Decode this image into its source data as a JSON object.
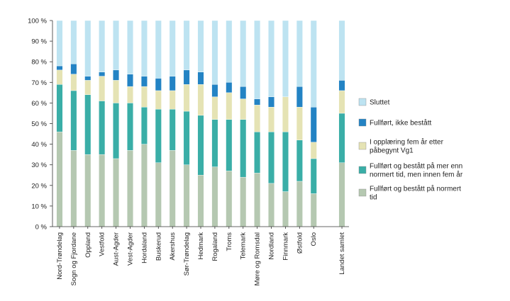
{
  "chart_data": {
    "type": "bar",
    "stacked": true,
    "title": "",
    "xlabel": "",
    "ylabel": "",
    "ylim": [
      0,
      100
    ],
    "yticks": [
      "0 %",
      "10 %",
      "20 %",
      "30 %",
      "40 %",
      "50 %",
      "60 %",
      "70 %",
      "80 %",
      "90 %",
      "100 %"
    ],
    "categories": [
      "Nord-Trøndelag",
      "Sogn og Fjordane",
      "Oppland",
      "Vestfold",
      "Aust-Agder",
      "Vest-Agder",
      "Hordaland",
      "Buskerud",
      "Akershus",
      "Sør-Trøndelag",
      "Hedmark",
      "Rogaland",
      "Troms",
      "Telemark",
      "Møre og Romsdal",
      "Nordland",
      "Finnmark",
      "Østfold",
      "Oslo",
      "Landet samlet"
    ],
    "grid": false,
    "legend_position": "right",
    "series": [
      {
        "name": "Fullført og bestått på normert tid",
        "color": "#b5c8b1",
        "values": [
          46,
          37,
          35,
          35,
          33,
          37,
          40,
          31,
          37,
          30,
          25,
          29,
          27,
          24,
          26,
          21,
          17,
          22,
          16,
          31
        ]
      },
      {
        "name": "Fullført og bestått på mer enn normert tid, men innen fem år",
        "color": "#3aaea7",
        "values": [
          23,
          29,
          29,
          26,
          27,
          23,
          18,
          26,
          20,
          26,
          29,
          23,
          25,
          28,
          20,
          25,
          29,
          20,
          17,
          24
        ]
      },
      {
        "name": "I opplæring fem år etter påbegynt Vg1",
        "color": "#e5e3b4",
        "values": [
          7,
          8,
          7,
          12,
          11,
          8,
          10,
          9,
          9,
          13,
          15,
          11,
          13,
          10,
          13,
          12,
          17,
          16,
          8,
          11
        ]
      },
      {
        "name": "Fullført, ikke bestått",
        "color": "#2383c4",
        "values": [
          2,
          5,
          2,
          2,
          5,
          6,
          5,
          6,
          7,
          7,
          6,
          6,
          5,
          6,
          3,
          5,
          0,
          10,
          17,
          5
        ]
      },
      {
        "name": "Sluttet",
        "color": "#bde3f1",
        "values": [
          22,
          21,
          27,
          25,
          24,
          26,
          27,
          28,
          27,
          24,
          25,
          31,
          30,
          32,
          38,
          37,
          37,
          32,
          42,
          29
        ]
      }
    ]
  }
}
